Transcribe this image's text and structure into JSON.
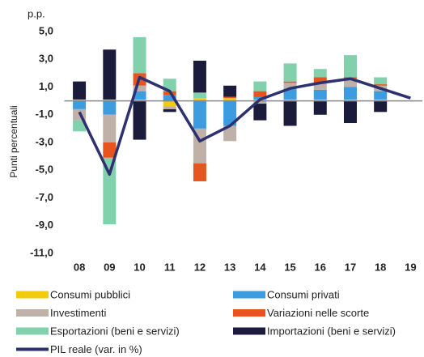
{
  "chart_data": {
    "type": "bar",
    "stacked": true,
    "title": "p.p.",
    "ylabel": "Punti percentuali",
    "categories": [
      "08",
      "09",
      "10",
      "11",
      "12",
      "13",
      "14",
      "15",
      "16",
      "17",
      "18",
      "19"
    ],
    "ylim": [
      -11,
      5
    ],
    "yticks": [
      {
        "value": 5,
        "label": "5,0"
      },
      {
        "value": 3,
        "label": "3,0"
      },
      {
        "value": 1,
        "label": "1,0"
      },
      {
        "value": -1,
        "label": "-1,0"
      },
      {
        "value": -3,
        "label": "-3,0"
      },
      {
        "value": -5,
        "label": "-5,0"
      },
      {
        "value": -7,
        "label": "-7,0"
      },
      {
        "value": -9,
        "label": "-9,0"
      },
      {
        "value": -11,
        "label": "-11,0"
      }
    ],
    "series": [
      {
        "name": "Consumi pubblici",
        "color": "#f2cc0c",
        "values": [
          0.1,
          0.1,
          0.1,
          -0.4,
          0.2,
          0.2,
          0.1,
          0.1,
          0.1,
          0.1,
          0.1,
          null
        ]
      },
      {
        "name": "Consumi privati",
        "color": "#3d9be0",
        "values": [
          -0.6,
          -1.0,
          0.6,
          0.4,
          -2.0,
          -1.8,
          0.2,
          0.8,
          0.7,
          0.9,
          0.6,
          null
        ]
      },
      {
        "name": "Investimenti",
        "color": "#bfb0a8",
        "values": [
          -0.8,
          -2.0,
          0.4,
          -0.2,
          -2.5,
          -1.1,
          -0.2,
          0.4,
          0.5,
          0.6,
          0.4,
          null
        ]
      },
      {
        "name": "Variazioni nelle scorte",
        "color": "#e8541e",
        "values": [
          0,
          -1.1,
          0.9,
          0.3,
          -1.3,
          0.1,
          0.4,
          0.1,
          0.4,
          0.1,
          0.1,
          null
        ]
      },
      {
        "name": "Esportazioni (beni e servizi)",
        "color": "#82d1ad",
        "values": [
          -0.8,
          -4.8,
          2.6,
          0.9,
          0.4,
          0,
          0.7,
          1.3,
          0.6,
          1.6,
          0.5,
          null
        ]
      },
      {
        "name": "Importazioni (beni e servizi)",
        "color": "#1b1b3c",
        "values": [
          1.3,
          3.6,
          -2.8,
          -0.2,
          2.3,
          0.8,
          -1.2,
          -1.8,
          -1.0,
          -1.6,
          -0.8,
          null
        ]
      },
      {
        "name": "PIL reale (var. in %)",
        "color": "#2d3170",
        "type": "line",
        "values": [
          -0.8,
          -5.3,
          1.7,
          0.7,
          -2.9,
          -1.8,
          0.1,
          0.9,
          1.3,
          1.6,
          0.9,
          0.2
        ]
      }
    ]
  }
}
